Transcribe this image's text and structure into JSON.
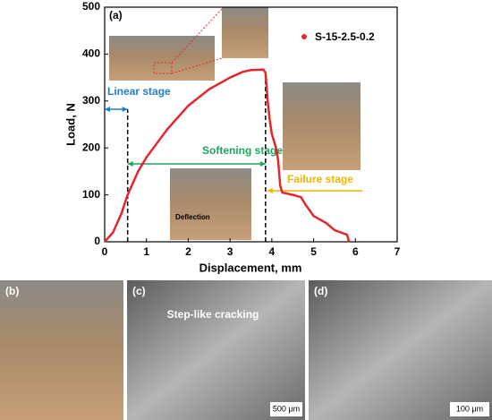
{
  "chart_data": {
    "type": "line",
    "panel_label": "(a)",
    "x_label": "Displacement, mm",
    "y_label": "Load, N",
    "xlim": [
      0,
      7
    ],
    "xticks": [
      0,
      1,
      2,
      3,
      4,
      5,
      6,
      7
    ],
    "ylim": [
      0,
      500
    ],
    "yticks": [
      0,
      100,
      200,
      300,
      400,
      500
    ],
    "legend": "upper right",
    "series": [
      {
        "name": "S-15-2.5-0.2",
        "color": "#e3262b",
        "x": [
          0,
          0.2,
          0.4,
          0.55,
          0.8,
          1.0,
          1.5,
          2.0,
          2.5,
          3.0,
          3.3,
          3.5,
          3.8,
          3.85,
          3.9,
          3.95,
          4.0,
          4.05,
          4.1,
          4.15,
          4.2,
          4.25,
          4.5,
          4.7,
          4.8,
          5.0,
          5.3,
          5.5,
          5.8,
          5.85
        ],
        "values": [
          0,
          20,
          60,
          100,
          150,
          180,
          240,
          290,
          325,
          350,
          362,
          366,
          367,
          360,
          300,
          260,
          230,
          215,
          200,
          175,
          120,
          105,
          100,
          95,
          80,
          55,
          40,
          25,
          15,
          0
        ]
      }
    ],
    "stage_boundaries": [
      0.55,
      3.85
    ],
    "annotations": [
      "Linear stage",
      "Softening stage",
      "Failure stage",
      "Deflection"
    ]
  },
  "figure": {
    "panel_labels": [
      "(b)",
      "(c)",
      "(d)"
    ],
    "photo_texts": [
      "Step-like cracking",
      "500 μm",
      "100 μm"
    ]
  }
}
